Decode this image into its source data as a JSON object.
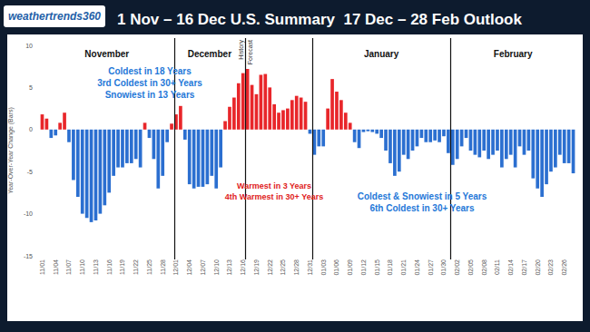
{
  "chart_data": {
    "type": "bar",
    "title": "1 Nov – 16 Dec U.S. Summary  17 Dec – 28 Feb Outlook",
    "brand": "weathertrends360",
    "ylabel": "Year-Over-Year Change (Bars)",
    "months": [
      "November",
      "December",
      "January",
      "February"
    ],
    "history_label": "History",
    "forecast_label": "Forecast",
    "history_end": "12/16",
    "annotations": [
      {
        "text": [
          "Coldest in 18 Years",
          "3rd Coldest in 30+ Years",
          "Snowiest in 13 Years"
        ],
        "color": "#1f78d8"
      },
      {
        "text": [
          "Warmest in 3 Years",
          "4th Warmest in 30+ Years"
        ],
        "color": "#e02020"
      },
      {
        "text": [
          "Coldest & Snowiest in 5 Years",
          "6th Coldest in 30+ Years"
        ],
        "color": "#1f78d8"
      }
    ],
    "categories": [
      "11/01",
      null,
      null,
      "11/04",
      null,
      null,
      "11/07",
      null,
      null,
      "11/10",
      null,
      null,
      "11/13",
      null,
      null,
      "11/16",
      null,
      null,
      "11/19",
      null,
      null,
      "11/22",
      null,
      null,
      "11/25",
      null,
      null,
      "11/28",
      null,
      null,
      "12/01",
      null,
      null,
      "12/04",
      null,
      null,
      "12/07",
      null,
      null,
      "12/10",
      null,
      null,
      "12/13",
      null,
      null,
      "12/16",
      null,
      null,
      "12/19",
      null,
      null,
      "12/22",
      null,
      null,
      "12/25",
      null,
      null,
      "12/28",
      null,
      null,
      "12/31",
      null,
      null,
      "01/03",
      null,
      null,
      "01/06",
      null,
      null,
      "01/09",
      null,
      null,
      "01/12",
      null,
      null,
      "01/15",
      null,
      null,
      "01/18",
      null,
      null,
      "01/21",
      null,
      null,
      "01/24",
      null,
      null,
      "01/27",
      null,
      null,
      "01/30",
      null,
      null,
      "02/02",
      null,
      null,
      "02/05",
      null,
      null,
      "02/08",
      null,
      null,
      "02/11",
      null,
      null,
      "02/14",
      null,
      null,
      "02/17",
      null,
      null,
      "02/20",
      null,
      null,
      "02/23",
      null,
      null,
      "02/26",
      null,
      null
    ],
    "values": [
      1.8,
      1.3,
      -1.0,
      -0.7,
      0.8,
      2.0,
      -1.5,
      -6.0,
      -8.0,
      -10.0,
      -10.5,
      -11.0,
      -10.8,
      -10.0,
      -9.0,
      -7.5,
      -5.5,
      -4.5,
      -4.5,
      -4.0,
      -4.0,
      -3.5,
      -4.5,
      0.8,
      -1.0,
      -3.5,
      -7.0,
      -5.5,
      -1.5,
      0.7,
      1.8,
      2.8,
      -1.2,
      -6.5,
      -7.0,
      -6.8,
      -6.8,
      -6.5,
      -5.5,
      -7.0,
      -4.5,
      1.0,
      2.7,
      3.8,
      5.5,
      6.7,
      7.2,
      5.3,
      4.2,
      6.5,
      6.6,
      5.0,
      3.0,
      2.0,
      2.3,
      2.5,
      3.5,
      4.0,
      3.8,
      3.3,
      -0.5,
      -3.0,
      -2.0,
      -2.0,
      2.5,
      6.0,
      4.5,
      3.5,
      2.0,
      0.8,
      -1.5,
      -2.2,
      -0.3,
      -0.2,
      -0.3,
      -0.5,
      -1.0,
      -2.5,
      -4.0,
      -5.5,
      -5.0,
      -3.0,
      -3.5,
      -2.5,
      -2.0,
      -1.0,
      -1.5,
      -1.5,
      -1.3,
      -1.5,
      -0.8,
      -2.8,
      -4.2,
      -3.5,
      -2.0,
      -1.0,
      -2.5,
      -3.0,
      -3.3,
      -2.5,
      -3.5,
      -3.0,
      -2.5,
      -4.5,
      -3.5,
      -3.0,
      -4.5,
      -2.0,
      -3.0,
      -2.5,
      -5.8,
      -7.0,
      -8.0,
      -6.5,
      -5.0,
      -4.5,
      -3.0,
      -4.0,
      -4.0,
      -5.2
    ],
    "colors": [
      "#e8262a",
      "#e8262a",
      "#2b6fd0",
      "#2b6fd0",
      "#e8262a",
      "#e8262a",
      "#2b6fd0",
      "#2b6fd0",
      "#2b6fd0",
      "#2b6fd0",
      "#2b6fd0",
      "#2b6fd0",
      "#2b6fd0",
      "#2b6fd0",
      "#2b6fd0",
      "#2b6fd0",
      "#2b6fd0",
      "#2b6fd0",
      "#2b6fd0",
      "#2b6fd0",
      "#2b6fd0",
      "#2b6fd0",
      "#2b6fd0",
      "#e8262a",
      "#2b6fd0",
      "#2b6fd0",
      "#2b6fd0",
      "#2b6fd0",
      "#2b6fd0",
      "#e8262a",
      "#e8262a",
      "#e8262a",
      "#2b6fd0",
      "#2b6fd0",
      "#2b6fd0",
      "#2b6fd0",
      "#2b6fd0",
      "#2b6fd0",
      "#2b6fd0",
      "#2b6fd0",
      "#2b6fd0",
      "#e8262a",
      "#e8262a",
      "#e8262a",
      "#e8262a",
      "#e8262a",
      "#e8262a",
      "#e8262a",
      "#e8262a",
      "#e8262a",
      "#e8262a",
      "#e8262a",
      "#e8262a",
      "#e8262a",
      "#e8262a",
      "#e8262a",
      "#e8262a",
      "#e8262a",
      "#e8262a",
      "#e8262a",
      "#2b6fd0",
      "#2b6fd0",
      "#2b6fd0",
      "#2b6fd0",
      "#e8262a",
      "#e8262a",
      "#e8262a",
      "#e8262a",
      "#e8262a",
      "#e8262a",
      "#2b6fd0",
      "#2b6fd0",
      "#2b6fd0",
      "#2b6fd0",
      "#2b6fd0",
      "#2b6fd0",
      "#2b6fd0",
      "#2b6fd0",
      "#2b6fd0",
      "#2b6fd0",
      "#2b6fd0",
      "#2b6fd0",
      "#2b6fd0",
      "#2b6fd0",
      "#2b6fd0",
      "#2b6fd0",
      "#2b6fd0",
      "#2b6fd0",
      "#2b6fd0",
      "#2b6fd0",
      "#2b6fd0",
      "#2b6fd0",
      "#2b6fd0",
      "#2b6fd0",
      "#2b6fd0",
      "#2b6fd0",
      "#2b6fd0",
      "#2b6fd0",
      "#2b6fd0",
      "#2b6fd0",
      "#2b6fd0",
      "#2b6fd0",
      "#2b6fd0",
      "#2b6fd0",
      "#2b6fd0",
      "#2b6fd0",
      "#2b6fd0",
      "#2b6fd0",
      "#2b6fd0",
      "#2b6fd0",
      "#2b6fd0",
      "#2b6fd0",
      "#2b6fd0",
      "#2b6fd0",
      "#2b6fd0",
      "#2b6fd0",
      "#2b6fd0",
      "#2b6fd0",
      "#2b6fd0",
      "#2b6fd0"
    ],
    "ylim": [
      -15,
      10
    ],
    "yticks": [
      -15,
      -10,
      -5,
      0,
      5,
      10
    ],
    "grid": false
  }
}
